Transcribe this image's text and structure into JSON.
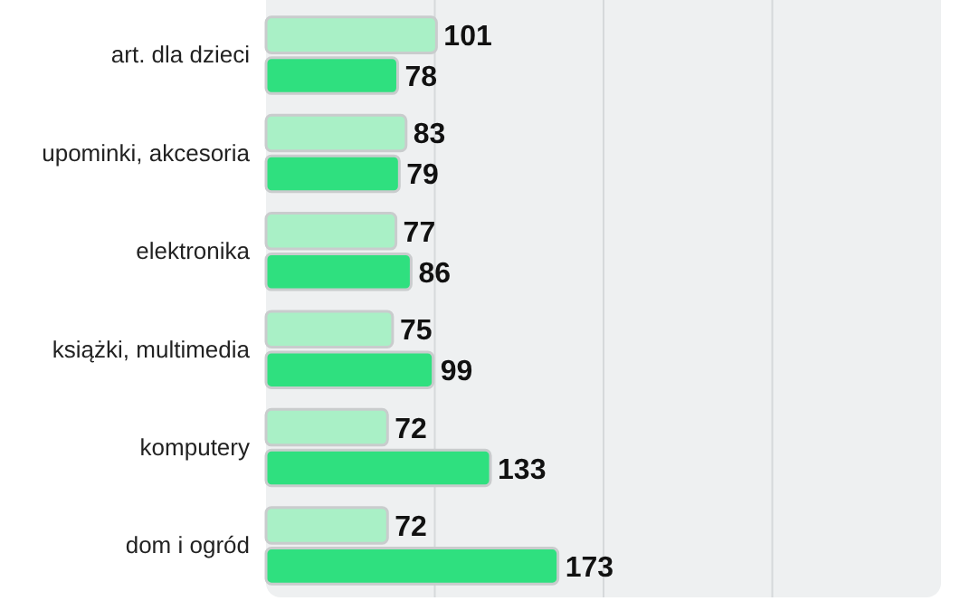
{
  "chart_data": {
    "type": "bar",
    "orientation": "horizontal",
    "categories": [
      "art. dla dzieci",
      "upominki, akcesoria",
      "elektronika",
      "książki, multimedia",
      "komputery",
      "dom i ogród"
    ],
    "series": [
      {
        "color": "#a9f0c6",
        "values": [
          101,
          83,
          77,
          75,
          72,
          72
        ]
      },
      {
        "color": "#2fe07f",
        "values": [
          78,
          79,
          86,
          99,
          133,
          173
        ]
      }
    ],
    "xlim": [
      0,
      400
    ],
    "xticks": [
      {
        "value": 100,
        "label": null
      },
      {
        "value": 200,
        "label": null
      },
      {
        "value": 300,
        "label": null
      }
    ],
    "grid": "x",
    "tick_labels": "y",
    "data_labels": true
  }
}
